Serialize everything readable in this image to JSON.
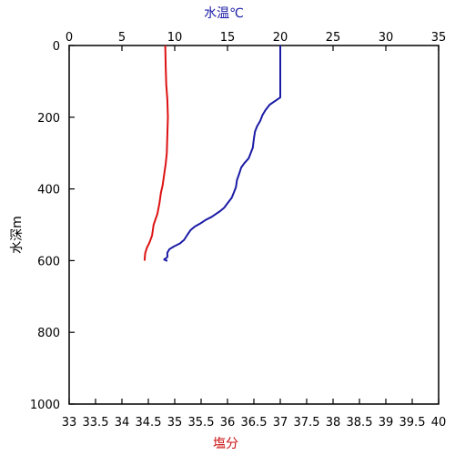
{
  "chart_data": {
    "type": "line",
    "title": "",
    "top_axis": {
      "label": "水温℃",
      "label_color": "#1a1aa6",
      "range": [
        0,
        35
      ],
      "ticks": [
        "0",
        "5",
        "10",
        "15",
        "20",
        "25",
        "30",
        "35"
      ]
    },
    "bottom_axis": {
      "label": "塩分",
      "label_color": "#cc1111",
      "range": [
        33,
        40
      ],
      "ticks": [
        "33",
        "33.5",
        "34",
        "34.5",
        "35",
        "35.5",
        "36",
        "36.5",
        "37",
        "37.5",
        "38",
        "38.5",
        "39",
        "39.5",
        "40"
      ]
    },
    "left_axis": {
      "label": "水深m",
      "range": [
        0,
        1000
      ],
      "inverted": true,
      "ticks": [
        "0",
        "200",
        "400",
        "600",
        "800",
        "1000"
      ]
    },
    "grid": false,
    "series": [
      {
        "quantity": "temperature",
        "axis": "top",
        "color": "#1a1aa6",
        "points": [
          {
            "x": 20.0,
            "y": 0
          },
          {
            "x": 20.0,
            "y": 50
          },
          {
            "x": 20.0,
            "y": 100
          },
          {
            "x": 20.0,
            "y": 145
          },
          {
            "x": 19.5,
            "y": 155
          },
          {
            "x": 19.0,
            "y": 165
          },
          {
            "x": 18.6,
            "y": 180
          },
          {
            "x": 18.3,
            "y": 195
          },
          {
            "x": 18.1,
            "y": 210
          },
          {
            "x": 17.8,
            "y": 225
          },
          {
            "x": 17.6,
            "y": 240
          },
          {
            "x": 17.5,
            "y": 260
          },
          {
            "x": 17.4,
            "y": 285
          },
          {
            "x": 17.2,
            "y": 300
          },
          {
            "x": 17.0,
            "y": 315
          },
          {
            "x": 16.6,
            "y": 328
          },
          {
            "x": 16.3,
            "y": 340
          },
          {
            "x": 16.1,
            "y": 358
          },
          {
            "x": 15.9,
            "y": 375
          },
          {
            "x": 15.8,
            "y": 395
          },
          {
            "x": 15.6,
            "y": 410
          },
          {
            "x": 15.4,
            "y": 425
          },
          {
            "x": 15.0,
            "y": 440
          },
          {
            "x": 14.7,
            "y": 452
          },
          {
            "x": 14.3,
            "y": 462
          },
          {
            "x": 13.9,
            "y": 470
          },
          {
            "x": 13.5,
            "y": 478
          },
          {
            "x": 12.9,
            "y": 487
          },
          {
            "x": 12.4,
            "y": 497
          },
          {
            "x": 11.9,
            "y": 505
          },
          {
            "x": 11.5,
            "y": 515
          },
          {
            "x": 11.2,
            "y": 528
          },
          {
            "x": 10.9,
            "y": 542
          },
          {
            "x": 10.5,
            "y": 552
          },
          {
            "x": 9.9,
            "y": 561
          },
          {
            "x": 9.5,
            "y": 568
          },
          {
            "x": 9.3,
            "y": 578
          },
          {
            "x": 9.3,
            "y": 590
          },
          {
            "x": 9.0,
            "y": 597
          },
          {
            "x": 9.3,
            "y": 601
          }
        ]
      },
      {
        "quantity": "salinity",
        "axis": "bottom",
        "color": "#dd1111",
        "points": [
          {
            "x": 34.82,
            "y": 0
          },
          {
            "x": 34.83,
            "y": 60
          },
          {
            "x": 34.84,
            "y": 110
          },
          {
            "x": 34.86,
            "y": 150
          },
          {
            "x": 34.87,
            "y": 200
          },
          {
            "x": 34.86,
            "y": 250
          },
          {
            "x": 34.85,
            "y": 300
          },
          {
            "x": 34.83,
            "y": 330
          },
          {
            "x": 34.8,
            "y": 360
          },
          {
            "x": 34.77,
            "y": 390
          },
          {
            "x": 34.74,
            "y": 410
          },
          {
            "x": 34.71,
            "y": 440
          },
          {
            "x": 34.67,
            "y": 470
          },
          {
            "x": 34.6,
            "y": 500
          },
          {
            "x": 34.57,
            "y": 530
          },
          {
            "x": 34.52,
            "y": 550
          },
          {
            "x": 34.47,
            "y": 565
          },
          {
            "x": 34.44,
            "y": 580
          },
          {
            "x": 34.43,
            "y": 600
          }
        ]
      }
    ]
  }
}
